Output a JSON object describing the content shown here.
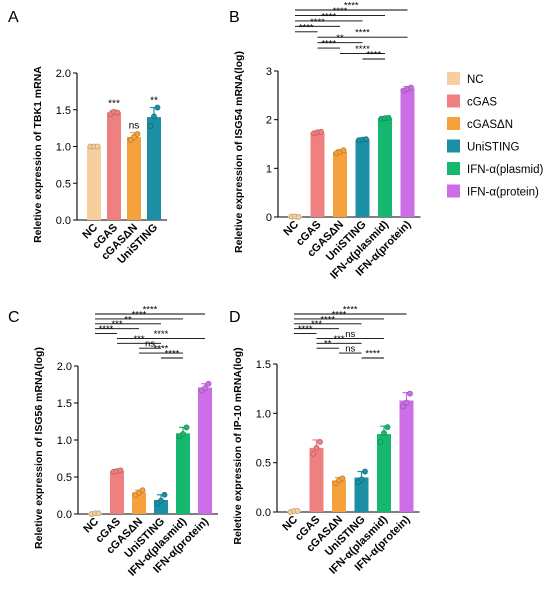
{
  "legend": [
    {
      "label": "NC",
      "color": "#f7cf9e"
    },
    {
      "label": "cGAS",
      "color": "#f08080"
    },
    {
      "label": "cGASΔN",
      "color": "#f5a13c"
    },
    {
      "label": "UniSTING",
      "color": "#1b8fa3"
    },
    {
      "label": "IFN-α(plasmid)",
      "color": "#16b86f"
    },
    {
      "label": "IFN-α(protein)",
      "color": "#cc6ee6"
    }
  ],
  "chart_data": [
    {
      "panel": "A",
      "type": "bar",
      "ylabel": "Reletive expression of TBK1 mRNA",
      "ylim": [
        0,
        2.0
      ],
      "yticks": [
        "0.0",
        "0.5",
        "1.0",
        "1.5",
        "2.0"
      ],
      "categories": [
        "NC",
        "cGAS",
        "cGASΔN",
        "UniSTING"
      ],
      "values": [
        1.0,
        1.46,
        1.13,
        1.4
      ],
      "errors": [
        0.01,
        0.03,
        0.06,
        0.13
      ],
      "points": [
        [
          1.0,
          1.0,
          1.0
        ],
        [
          1.44,
          1.47,
          1.46
        ],
        [
          1.09,
          1.13,
          1.17
        ],
        [
          1.28,
          1.41,
          1.53
        ]
      ],
      "significance": [
        "",
        "***",
        "ns",
        "**"
      ],
      "brackets": []
    },
    {
      "panel": "B",
      "type": "bar",
      "ylabel": "Reletive expression of ISG54 mRNA(log)",
      "ylim": [
        0,
        3
      ],
      "yticks": [
        "0",
        "1",
        "2",
        "3"
      ],
      "categories": [
        "NC",
        "cGAS",
        "cGASΔN",
        "UniSTING",
        "IFN-α(plasmid)",
        "IFN-α(protein)"
      ],
      "values": [
        0.01,
        1.74,
        1.34,
        1.59,
        2.03,
        2.64
      ],
      "errors": [
        0.01,
        0.02,
        0.04,
        0.02,
        0.02,
        0.04
      ],
      "points": [
        [
          0.01,
          0.01,
          0.0
        ],
        [
          1.72,
          1.74,
          1.75
        ],
        [
          1.31,
          1.34,
          1.37
        ],
        [
          1.58,
          1.59,
          1.6
        ],
        [
          2.02,
          2.03,
          2.04
        ],
        [
          2.6,
          2.63,
          2.66
        ]
      ],
      "brackets": [
        {
          "from": 0,
          "to": 5,
          "label": "****"
        },
        {
          "from": 0,
          "to": 4,
          "label": "****"
        },
        {
          "from": 0,
          "to": 3,
          "label": "****"
        },
        {
          "from": 0,
          "to": 2,
          "label": "****"
        },
        {
          "from": 0,
          "to": 1,
          "label": "****"
        },
        {
          "from": 1,
          "to": 5,
          "label": "****"
        },
        {
          "from": 1,
          "to": 3,
          "label": "**"
        },
        {
          "from": 1,
          "to": 2,
          "label": "****"
        },
        {
          "from": 2,
          "to": 4,
          "label": "****"
        },
        {
          "from": 3,
          "to": 4,
          "label": "****"
        }
      ]
    },
    {
      "panel": "C",
      "type": "bar",
      "ylabel": "Reletive expression of ISG56 mRNA(log)",
      "ylim": [
        0,
        2.0
      ],
      "yticks": [
        "0.0",
        "0.5",
        "1.0",
        "1.5",
        "2.0"
      ],
      "categories": [
        "NC",
        "cGAS",
        "cGASΔN",
        "UniSTING",
        "IFN-α(plasmid)",
        "IFN-α(protein)"
      ],
      "values": [
        0.01,
        0.58,
        0.29,
        0.19,
        1.09,
        1.71
      ],
      "errors": [
        0.01,
        0.02,
        0.03,
        0.07,
        0.08,
        0.05
      ],
      "points": [
        [
          0.0,
          0.01,
          0.01
        ],
        [
          0.57,
          0.58,
          0.59
        ],
        [
          0.26,
          0.29,
          0.32
        ],
        [
          0.14,
          0.18,
          0.26
        ],
        [
          1.05,
          1.08,
          1.17
        ],
        [
          1.67,
          1.7,
          1.76
        ]
      ],
      "brackets": [
        {
          "from": 0,
          "to": 5,
          "label": "****"
        },
        {
          "from": 0,
          "to": 4,
          "label": "****"
        },
        {
          "from": 0,
          "to": 3,
          "label": "**"
        },
        {
          "from": 0,
          "to": 2,
          "label": "***"
        },
        {
          "from": 0,
          "to": 1,
          "label": "****"
        },
        {
          "from": 1,
          "to": 5,
          "label": "****"
        },
        {
          "from": 1,
          "to": 3,
          "label": "***"
        },
        {
          "from": 2,
          "to": 3,
          "label": "ns"
        },
        {
          "from": 2,
          "to": 4,
          "label": "****"
        },
        {
          "from": 3,
          "to": 4,
          "label": "****"
        }
      ]
    },
    {
      "panel": "D",
      "type": "bar",
      "ylabel": "Reletive expression of IP-10 mRNA(log)",
      "ylim": [
        0,
        1.5
      ],
      "yticks": [
        "0.0",
        "0.5",
        "1.0",
        "1.5"
      ],
      "categories": [
        "NC",
        "cGAS",
        "cGASΔN",
        "UniSTING",
        "IFN-α(plasmid)",
        "IFN-α(protein)"
      ],
      "values": [
        0.01,
        0.65,
        0.32,
        0.35,
        0.79,
        1.13
      ],
      "errors": [
        0.01,
        0.08,
        0.03,
        0.06,
        0.08,
        0.08
      ],
      "points": [
        [
          0.0,
          0.01,
          0.01
        ],
        [
          0.59,
          0.65,
          0.71
        ],
        [
          0.29,
          0.32,
          0.34
        ],
        [
          0.3,
          0.33,
          0.41
        ],
        [
          0.71,
          0.8,
          0.86
        ],
        [
          1.07,
          1.11,
          1.2
        ]
      ],
      "brackets": [
        {
          "from": 0,
          "to": 5,
          "label": "****"
        },
        {
          "from": 0,
          "to": 4,
          "label": "****"
        },
        {
          "from": 0,
          "to": 3,
          "label": "****"
        },
        {
          "from": 0,
          "to": 2,
          "label": "***"
        },
        {
          "from": 0,
          "to": 1,
          "label": "****"
        },
        {
          "from": 1,
          "to": 4,
          "label": "ns"
        },
        {
          "from": 1,
          "to": 3,
          "label": "***"
        },
        {
          "from": 1,
          "to": 2,
          "label": "**"
        },
        {
          "from": 2,
          "to": 3,
          "label": "ns"
        },
        {
          "from": 3,
          "to": 4,
          "label": "****"
        }
      ]
    }
  ]
}
